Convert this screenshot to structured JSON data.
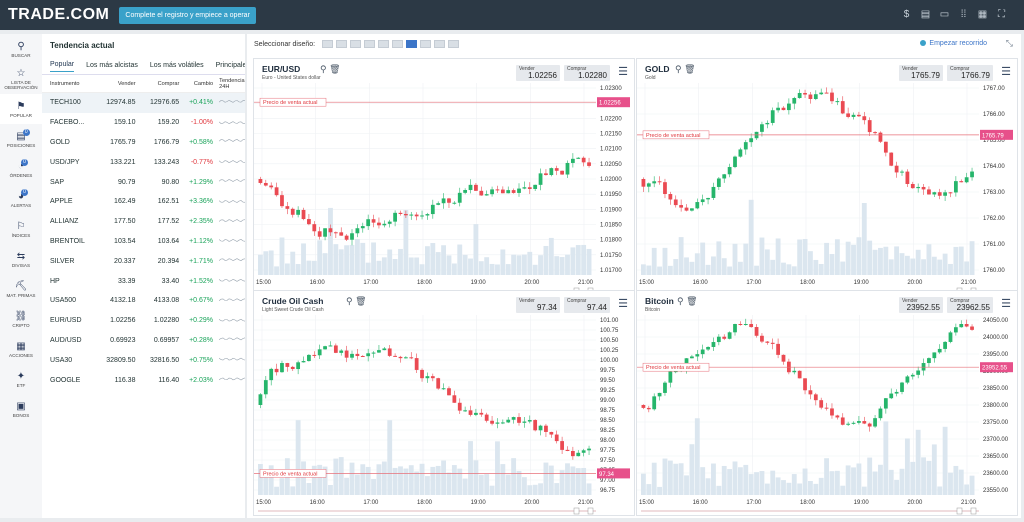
{
  "brand": {
    "logo": "TRADE.COM",
    "cta": "Complete el registro y empiece a operar"
  },
  "topicons": [
    "dollar-circle-icon",
    "news-icon",
    "chat-icon",
    "apps-grid-icon",
    "grid-icon",
    "fullscreen-icon"
  ],
  "nav": [
    {
      "label": "BUSCAR",
      "icon": "⚲"
    },
    {
      "label": "LISTA DE OBSERVACIÓN",
      "icon": "☆"
    },
    {
      "label": "POPULAR",
      "icon": "⚑",
      "active": true
    },
    {
      "label": "POSICIONES",
      "icon": "▤",
      "badge": "0"
    },
    {
      "label": "ÓRDENES",
      "icon": "◔",
      "badge": "0"
    },
    {
      "label": "ALERTAS",
      "icon": "◕",
      "badge": "0"
    },
    {
      "label": "ÍNDICES",
      "icon": "⚐"
    },
    {
      "label": "DIVISAS",
      "icon": "⇆"
    },
    {
      "label": "MAT. PRIMAS",
      "icon": "⛏"
    },
    {
      "label": "CRIPTO",
      "icon": "⛓"
    },
    {
      "label": "ACCIONES",
      "icon": "▦"
    },
    {
      "label": "ETF",
      "icon": "✦"
    },
    {
      "label": "BONOS",
      "icon": "▣"
    }
  ],
  "panel": {
    "title": "Tendencia actual",
    "tabs": [
      "Popular",
      "Los más alcistas",
      "Los más volátiles",
      "Principales t"
    ],
    "headers": [
      "Instrumento",
      "Vender",
      "Comprar",
      "Cambio",
      "Tendencia 24H"
    ],
    "rows": [
      {
        "name": "TECH100",
        "sell": "12974.85",
        "buy": "12976.65",
        "chg": "+0.41%"
      },
      {
        "name": "FACEBO...",
        "sell": "159.10",
        "buy": "159.20",
        "chg": "-1.00%"
      },
      {
        "name": "GOLD",
        "sell": "1765.79",
        "buy": "1766.79",
        "chg": "+0.58%"
      },
      {
        "name": "USD/JPY",
        "sell": "133.221",
        "buy": "133.243",
        "chg": "-0.77%"
      },
      {
        "name": "SAP",
        "sell": "90.79",
        "buy": "90.80",
        "chg": "+1.29%"
      },
      {
        "name": "APPLE",
        "sell": "162.49",
        "buy": "162.51",
        "chg": "+3.36%"
      },
      {
        "name": "ALLIANZ",
        "sell": "177.50",
        "buy": "177.52",
        "chg": "+2.35%"
      },
      {
        "name": "BRENTOIL",
        "sell": "103.54",
        "buy": "103.64",
        "chg": "+1.12%"
      },
      {
        "name": "SILVER",
        "sell": "20.337",
        "buy": "20.394",
        "chg": "+1.71%"
      },
      {
        "name": "HP",
        "sell": "33.39",
        "buy": "33.40",
        "chg": "+1.52%"
      },
      {
        "name": "USA500",
        "sell": "4132.18",
        "buy": "4133.08",
        "chg": "+0.67%"
      },
      {
        "name": "EUR/USD",
        "sell": "1.02256",
        "buy": "1.02280",
        "chg": "+0.29%"
      },
      {
        "name": "AUD/USD",
        "sell": "0.69923",
        "buy": "0.69957",
        "chg": "+0.28%"
      },
      {
        "name": "USA30",
        "sell": "32809.50",
        "buy": "32816.50",
        "chg": "+0.75%"
      },
      {
        "name": "GOOGLE",
        "sell": "116.38",
        "buy": "116.40",
        "chg": "+2.03%"
      }
    ]
  },
  "main": {
    "layout_label": "Seleccionar diseño:",
    "record": "Empezar recorrido"
  },
  "charts": [
    {
      "title": "EUR/USD",
      "subtitle": "Euro - United States dollar",
      "sell_label": "Vender",
      "sell": "1.02256",
      "buy_label": "Comprar",
      "buy": "1.02280",
      "price_tag": "1.02256",
      "line_label": "Precio de venta actual",
      "yticks": [
        "1.02300",
        "1.02250",
        "1.02200",
        "1.02150",
        "1.02100",
        "1.02050",
        "1.02000",
        "1.01950",
        "1.01900",
        "1.01850",
        "1.01800",
        "1.01750",
        "1.01700"
      ],
      "xticks": [
        "15:00",
        "16:00",
        "17:00",
        "18:00",
        "19:00",
        "20:00",
        "21:00"
      ],
      "line_frac": 0.1
    },
    {
      "title": "GOLD",
      "subtitle": "Gold",
      "sell_label": "Vender",
      "sell": "1765.79",
      "buy_label": "Comprar",
      "buy": "1766.79",
      "price_tag": "1765.79",
      "line_label": "Precio de venta actual",
      "yticks": [
        "1767.00",
        "1766.00",
        "1765.00",
        "1764.00",
        "1763.00",
        "1762.00",
        "1761.00",
        "1760.00"
      ],
      "xticks": [
        "15:00",
        "16:00",
        "17:00",
        "18:00",
        "19:00",
        "20:00",
        "21:00"
      ],
      "line_frac": 0.27
    },
    {
      "title": "Crude Oil Cash",
      "subtitle": "Light Sweet Crude Oil Cash",
      "sell_label": "Vender",
      "sell": "97.34",
      "buy_label": "Comprar",
      "buy": "97.44",
      "price_tag": "97.34",
      "line_label": "Precio de venta actual",
      "yticks": [
        "101.00",
        "100.75",
        "100.50",
        "100.25",
        "100.00",
        "99.75",
        "99.50",
        "99.25",
        "99.00",
        "98.75",
        "98.50",
        "98.25",
        "98.00",
        "97.75",
        "97.50",
        "97.25",
        "97.00",
        "96.75"
      ],
      "xticks": [
        "15:00",
        "16:00",
        "17:00",
        "18:00",
        "19:00",
        "20:00",
        "21:00"
      ],
      "line_frac": 0.88
    },
    {
      "title": "Bitcoin",
      "subtitle": "Bitcoin",
      "sell_label": "Vender",
      "sell": "23952.55",
      "buy_label": "Comprar",
      "buy": "23962.55",
      "price_tag": "23952.55",
      "line_label": "Precio de venta actual",
      "yticks": [
        "24050.00",
        "24000.00",
        "23950.00",
        "23900.00",
        "23850.00",
        "23800.00",
        "23750.00",
        "23700.00",
        "23650.00",
        "23600.00",
        "23550.00"
      ],
      "xticks": [
        "15:00",
        "16:00",
        "17:00",
        "18:00",
        "19:00",
        "20:00",
        "21:00"
      ],
      "line_frac": 0.29
    }
  ]
}
